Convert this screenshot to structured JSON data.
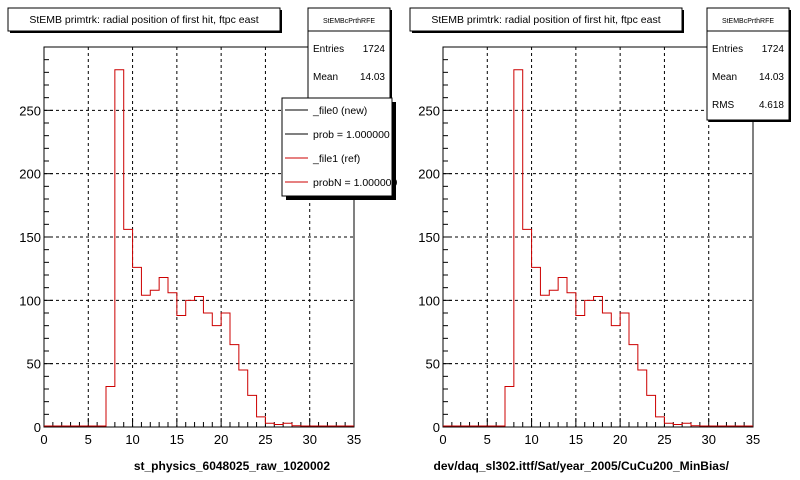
{
  "chart_data": [
    {
      "type": "histogram",
      "title": "StEMB primtrk: radial position of first hit, ftpc east",
      "xlabel": "st_physics_6048025_raw_1020002",
      "xlim": [
        0,
        35
      ],
      "ylim": [
        0,
        300
      ],
      "xticks": [
        "0",
        "5",
        "10",
        "15",
        "20",
        "25",
        "30",
        "35"
      ],
      "yticks": [
        "0",
        "50",
        "100",
        "150",
        "200",
        "250"
      ],
      "grid": true,
      "bin_edges": [
        0,
        1,
        2,
        3,
        4,
        5,
        6,
        7,
        8,
        9,
        10,
        11,
        12,
        13,
        14,
        15,
        16,
        17,
        18,
        19,
        20,
        21,
        22,
        23,
        24,
        25,
        26,
        27,
        28,
        29,
        30,
        31,
        32,
        33,
        34,
        35
      ],
      "series": [
        {
          "name": "_file1 (ref)",
          "color": "#cc0000",
          "values": [
            0,
            0,
            0,
            0,
            0,
            0,
            0,
            32,
            282,
            156,
            126,
            104,
            108,
            118,
            106,
            88,
            100,
            103,
            90,
            80,
            90,
            65,
            45,
            25,
            8,
            3,
            2,
            3,
            1,
            0,
            0,
            0,
            0,
            0,
            0
          ]
        }
      ],
      "stats": {
        "title": "StEMBcPrthRFE",
        "rows": [
          {
            "label": "Entries",
            "value": "1724"
          },
          {
            "label": "Mean",
            "value": "14.03"
          }
        ]
      },
      "legend": {
        "position": "top-right",
        "entries": [
          {
            "label": "_file0 (new)",
            "color": "#000000"
          },
          {
            "label": "prob = 1.000000",
            "color": "#000000"
          },
          {
            "label": "_file1 (ref)",
            "color": "#cc0000"
          },
          {
            "label": "probN = 1.000000",
            "color": "#cc0000"
          }
        ]
      }
    },
    {
      "type": "histogram",
      "title": "StEMB primtrk: radial position of first hit, ftpc east",
      "xlabel": "dev/daq_sl302.ittf/Sat/year_2005/CuCu200_MinBias/",
      "xlim": [
        0,
        35
      ],
      "ylim": [
        0,
        300
      ],
      "xticks": [
        "0",
        "5",
        "10",
        "15",
        "20",
        "25",
        "30",
        "35"
      ],
      "yticks": [
        "0",
        "50",
        "100",
        "150",
        "200",
        "250"
      ],
      "grid": true,
      "bin_edges": [
        0,
        1,
        2,
        3,
        4,
        5,
        6,
        7,
        8,
        9,
        10,
        11,
        12,
        13,
        14,
        15,
        16,
        17,
        18,
        19,
        20,
        21,
        22,
        23,
        24,
        25,
        26,
        27,
        28,
        29,
        30,
        31,
        32,
        33,
        34,
        35
      ],
      "series": [
        {
          "name": "",
          "color": "#cc0000",
          "values": [
            0,
            0,
            0,
            0,
            0,
            0,
            0,
            32,
            282,
            156,
            126,
            104,
            108,
            118,
            106,
            88,
            100,
            103,
            90,
            80,
            90,
            65,
            45,
            25,
            8,
            3,
            2,
            3,
            1,
            0,
            0,
            0,
            0,
            0,
            0
          ]
        }
      ],
      "stats": {
        "title": "StEMBcPrthRFE",
        "rows": [
          {
            "label": "Entries",
            "value": "1724"
          },
          {
            "label": "Mean",
            "value": "14.03"
          },
          {
            "label": "RMS",
            "value": "4.618"
          }
        ]
      }
    }
  ]
}
